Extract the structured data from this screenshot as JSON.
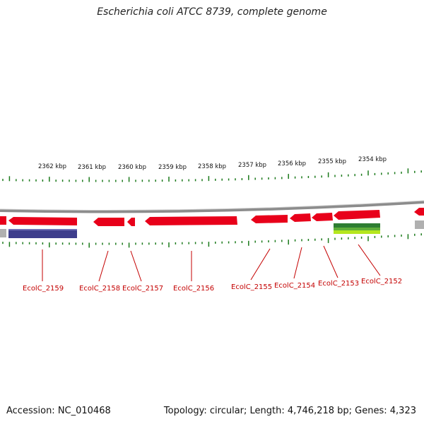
{
  "header": {
    "title": "Escherichia coli ATCC 8739, complete genome"
  },
  "footer": {
    "accession": "Accession: NC_010468",
    "summary": "Topology: circular; Length: 4,746,218 bp; Genes: 4,323"
  },
  "scale": {
    "labels": [
      "2362 kbp",
      "2361 kbp",
      "2360 kbp",
      "2359 kbp",
      "2358 kbp",
      "2357 kbp",
      "2356 kbp",
      "2355 kbp",
      "2354 kbp"
    ]
  },
  "genes": [
    {
      "label": "EcolC_2159",
      "strand": "minus"
    },
    {
      "label": "EcolC_2158",
      "strand": "minus"
    },
    {
      "label": "EcolC_2157",
      "strand": "minus"
    },
    {
      "label": "EcolC_2156",
      "strand": "minus"
    },
    {
      "label": "EcolC_2155",
      "strand": "minus"
    },
    {
      "label": "EcolC_2154",
      "strand": "minus"
    },
    {
      "label": "EcolC_2153",
      "strand": "minus"
    },
    {
      "label": "EcolC_2152",
      "strand": "minus"
    }
  ],
  "colors": {
    "gene": "#e8001a",
    "gene_shadow": "#b30014",
    "backbone": "#8c8c8c",
    "tick": "#1b7a1b",
    "label": "#c40000",
    "cds_band": "#3d3d8c",
    "feature_green": "#2e7d32",
    "feature_lime": "#b5e61d",
    "gray_feature": "#b0b0b0"
  }
}
